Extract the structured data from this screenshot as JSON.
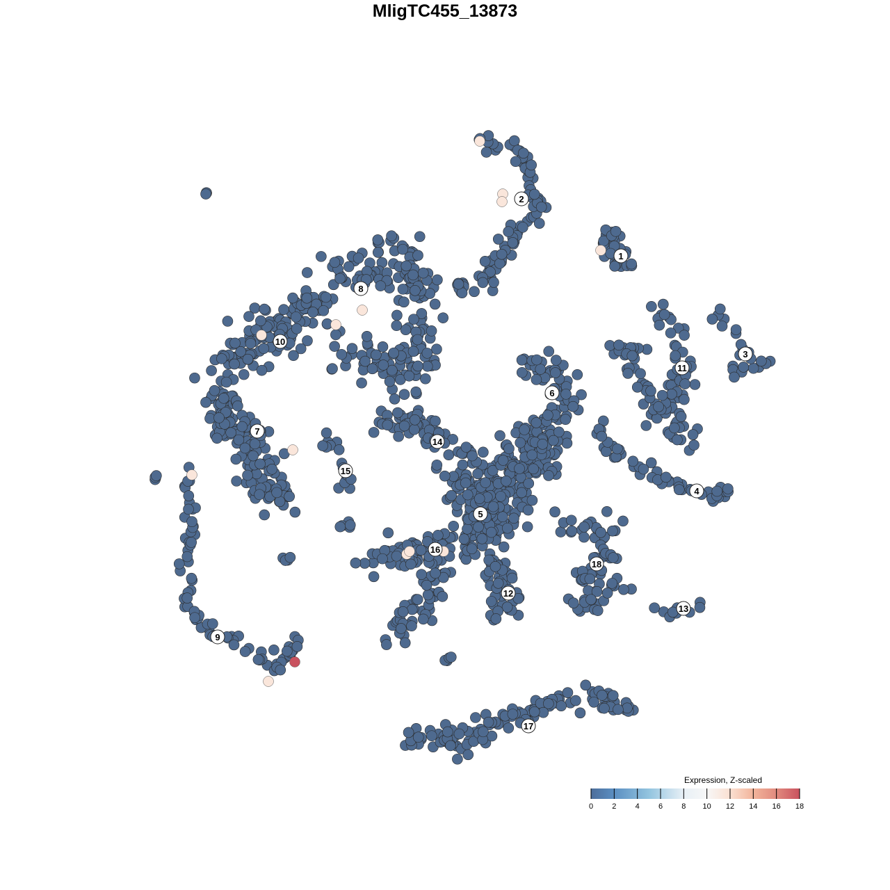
{
  "chart_data": {
    "type": "scatter",
    "title": "MligTC455_13873",
    "xlabel": "",
    "ylabel": "",
    "grid": false,
    "base_color": "#4e6a8f",
    "point_outline": "#2b2b2b",
    "legend": {
      "title": "Expression, Z-scaled",
      "placement": "bottom-right",
      "range": [
        0,
        18
      ],
      "ticks": [
        "0",
        "2",
        "4",
        "6",
        "8",
        "10",
        "12",
        "14",
        "16",
        "18"
      ],
      "color_stops": [
        {
          "value": 0,
          "color": "#4d6e9b"
        },
        {
          "value": 2,
          "color": "#5b8fc2"
        },
        {
          "value": 5,
          "color": "#93c4df"
        },
        {
          "value": 8,
          "color": "#e8f0f6"
        },
        {
          "value": 10,
          "color": "#f7f7f7"
        },
        {
          "value": 12,
          "color": "#fbe0d2"
        },
        {
          "value": 14,
          "color": "#f2b49b"
        },
        {
          "value": 16,
          "color": "#e18a7e"
        },
        {
          "value": 18,
          "color": "#c9525f"
        }
      ]
    },
    "clusters": [
      {
        "label": "1",
        "center": [
          25.3,
          27.2
        ],
        "path": [
          [
            23,
            31
          ],
          [
            25,
            27
          ],
          [
            26,
            26
          ]
        ],
        "n": 35,
        "spread": 1.5
      },
      {
        "label": "2",
        "center": [
          11.0,
          35.4
        ],
        "path": [
          [
            4.5,
            44
          ],
          [
            10,
            43
          ],
          [
            13,
            38
          ],
          [
            13,
            33
          ],
          [
            8,
            28
          ],
          [
            6,
            23
          ],
          [
            2,
            22.5
          ]
        ],
        "n": 90,
        "spread": 1.2
      },
      {
        "label": "3",
        "center": [
          43.2,
          13.1
        ],
        "path": [
          [
            39,
            19.3
          ],
          [
            41,
            17
          ],
          [
            44,
            12.5
          ],
          [
            47,
            12
          ],
          [
            41,
            10.5
          ]
        ],
        "n": 24,
        "spread": 0.8
      },
      {
        "label": "4",
        "center": [
          36.2,
          -6.6
        ],
        "path": [
          [
            22,
            3
          ],
          [
            25,
            -2
          ],
          [
            32,
            -5.5
          ],
          [
            38,
            -7.5
          ],
          [
            41.5,
            -6.5
          ]
        ],
        "n": 50,
        "spread": 0.8
      },
      {
        "label": "5",
        "center": [
          5.1,
          -9.9
        ],
        "path": [
          [
            2,
            -5
          ],
          [
            6,
            -10
          ],
          [
            4,
            -14
          ],
          [
            8,
            -7
          ],
          [
            8,
            -4
          ],
          [
            12,
            -2
          ],
          [
            14,
            1
          ]
        ],
        "n": 300,
        "spread": 3.2
      },
      {
        "label": "6",
        "center": [
          15.4,
          7.5
        ],
        "path": [
          [
            11,
            11
          ],
          [
            16,
            11
          ],
          [
            18,
            6
          ],
          [
            14,
            3
          ],
          [
            13,
            -2
          ]
        ],
        "n": 80,
        "spread": 2
      },
      {
        "label": "7",
        "center": [
          -27.0,
          2.0
        ],
        "path": [
          [
            -33,
            10
          ],
          [
            -31,
            2
          ],
          [
            -26,
            0
          ],
          [
            -27,
            -5
          ],
          [
            -24,
            -8
          ]
        ],
        "n": 140,
        "spread": 2.5
      },
      {
        "label": "8",
        "center": [
          -12.1,
          22.5
        ],
        "path": [
          [
            -16,
            24
          ],
          [
            -6,
            27
          ],
          [
            -4,
            18
          ],
          [
            -5,
            10
          ],
          [
            -14,
            14
          ]
        ],
        "n": 180,
        "spread": 3
      },
      {
        "label": "9",
        "center": [
          -32.7,
          -27.6
        ],
        "path": [
          [
            -36.5,
            -3
          ],
          [
            -37,
            -12
          ],
          [
            -37,
            -23
          ],
          [
            -34,
            -27
          ],
          [
            -29,
            -29
          ],
          [
            -24,
            -32
          ],
          [
            -21,
            -28
          ]
        ],
        "n": 80,
        "spread": 0.9
      },
      {
        "label": "10",
        "center": [
          -23.7,
          14.9
        ],
        "path": [
          [
            -30,
            12
          ],
          [
            -24,
            17
          ],
          [
            -18,
            20
          ]
        ],
        "n": 120,
        "spread": 3
      },
      {
        "label": "11",
        "center": [
          34.1,
          11.1
        ],
        "path": [
          [
            30,
            20.5
          ],
          [
            33,
            16
          ],
          [
            34,
            10
          ],
          [
            33,
            7
          ],
          [
            30,
            4
          ],
          [
            33,
            1
          ],
          [
            36,
            1
          ],
          [
            24,
            14
          ],
          [
            29,
            13
          ]
        ],
        "n": 100,
        "spread": 1.3
      },
      {
        "label": "12",
        "center": [
          9.1,
          -21.3
        ],
        "path": [
          [
            7,
            -17
          ],
          [
            9,
            -21
          ],
          [
            8,
            -24
          ]
        ],
        "n": 50,
        "spread": 1.8
      },
      {
        "label": "13",
        "center": [
          34.3,
          -23.5
        ],
        "path": [
          [
            31,
            -24
          ],
          [
            35,
            -24
          ],
          [
            37,
            -22
          ]
        ],
        "n": 12,
        "spread": 0.6
      },
      {
        "label": "14",
        "center": [
          -1.1,
          0.5
        ],
        "path": [
          [
            -10,
            3
          ],
          [
            -3,
            3
          ],
          [
            0,
            0
          ],
          [
            5,
            -2
          ]
        ],
        "n": 70,
        "spread": 1.5
      },
      {
        "label": "15",
        "center": [
          -14.3,
          -3.7
        ],
        "path": [
          [
            -18,
            1.5
          ],
          [
            -15,
            -1
          ],
          [
            -14,
            -5
          ],
          [
            -16,
            -7
          ]
        ],
        "n": 15,
        "spread": 0.7
      },
      {
        "label": "16",
        "center": [
          -1.4,
          -15.0
        ],
        "path": [
          [
            -11,
            -17
          ],
          [
            -5,
            -15
          ],
          [
            0,
            -14
          ],
          [
            -3,
            -18
          ],
          [
            -2,
            -22
          ],
          [
            -6,
            -26
          ],
          [
            -8,
            -27.5
          ]
        ],
        "n": 110,
        "spread": 1.8
      },
      {
        "label": "17",
        "center": [
          12.0,
          -40.4
        ],
        "path": [
          [
            -6,
            -42
          ],
          [
            0,
            -42.5
          ],
          [
            5,
            -42
          ],
          [
            10,
            -39
          ],
          [
            16,
            -37
          ],
          [
            22,
            -36
          ],
          [
            26,
            -37
          ]
        ],
        "n": 120,
        "spread": 1.8
      },
      {
        "label": "18",
        "center": [
          21.8,
          -17.1
        ],
        "path": [
          [
            17,
            -11
          ],
          [
            22,
            -12
          ],
          [
            24,
            -14
          ],
          [
            21,
            -18
          ],
          [
            20,
            -24
          ],
          [
            26,
            -19
          ]
        ],
        "n": 70,
        "spread": 1.8
      },
      {
        "label": "",
        "center": [
          -34.8,
          36.6
        ],
        "path": [
          [
            -35,
            36.8
          ],
          [
            -34,
            36
          ]
        ],
        "n": 3,
        "spread": 0.2
      },
      {
        "label": "",
        "center": [
          -41.8,
          -4.8
        ],
        "path": [
          [
            -42,
            -5
          ],
          [
            -41.5,
            -4.5
          ]
        ],
        "n": 4,
        "spread": 0.2
      },
      {
        "label": "",
        "center": [
          -23,
          -16.5
        ],
        "path": [
          [
            -23,
            -16.5
          ]
        ],
        "n": 4,
        "spread": 0.5
      },
      {
        "label": "",
        "center": [
          -15,
          -12
        ],
        "path": [
          [
            -15.5,
            -11.5
          ],
          [
            -13,
            -12.5
          ]
        ],
        "n": 5,
        "spread": 0.5
      },
      {
        "label": "",
        "center": [
          0.5,
          -31
        ],
        "path": [
          [
            0,
            -31.5
          ],
          [
            1,
            -30.5
          ]
        ],
        "n": 4,
        "spread": 0.4
      }
    ],
    "highlighted_points": [
      {
        "x": 5.0,
        "y": 43.7,
        "value": 11.5
      },
      {
        "x": 8.3,
        "y": 36.1,
        "value": 11.5
      },
      {
        "x": 8.2,
        "y": 35.0,
        "value": 11.5
      },
      {
        "x": 22.4,
        "y": 28.0,
        "value": 11.5
      },
      {
        "x": -11.9,
        "y": 19.4,
        "value": 11.5
      },
      {
        "x": -15.7,
        "y": 17.3,
        "value": 11.5
      },
      {
        "x": -26.4,
        "y": 15.8,
        "value": 11.5
      },
      {
        "x": -21.9,
        "y": -0.7,
        "value": 11.5
      },
      {
        "x": -36.4,
        "y": -4.3,
        "value": 11.5
      },
      {
        "x": -5.5,
        "y": -15.7,
        "value": 11.5
      },
      {
        "x": -5.1,
        "y": -15.3,
        "value": 11.5
      },
      {
        "x": -0.2,
        "y": -15.3,
        "value": 11.5
      },
      {
        "x": -25.4,
        "y": -34.0,
        "value": 11.5
      },
      {
        "x": -21.6,
        "y": -31.2,
        "value": 18
      }
    ]
  }
}
